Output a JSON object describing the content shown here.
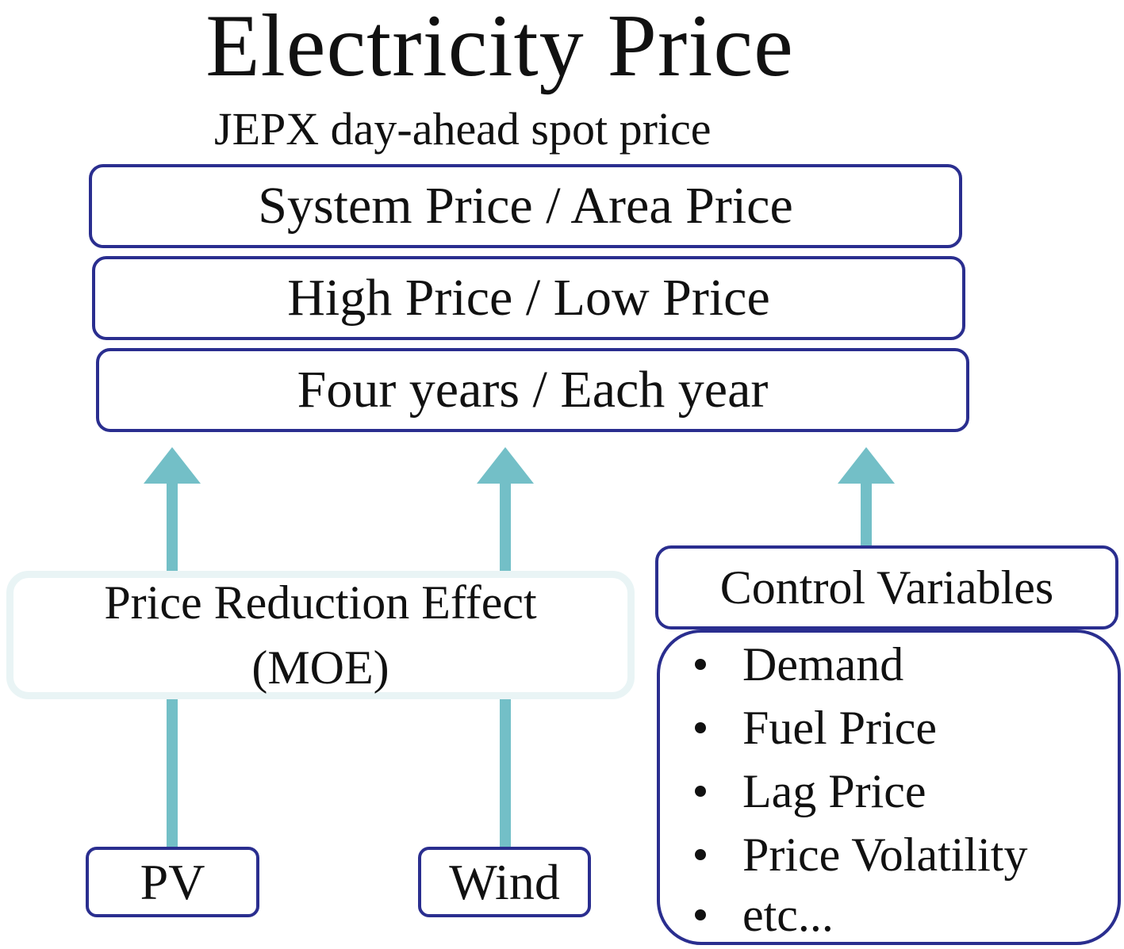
{
  "title": "Electricity Price",
  "subtitle": "JEPX day-ahead spot price",
  "bands": [
    {
      "label": "System Price / Area Price"
    },
    {
      "label": "High Price / Low Price"
    },
    {
      "label": "Four years / Each year"
    }
  ],
  "effect_box": {
    "line1": "Price Reduction Effect",
    "line2": "(MOE)"
  },
  "sources": {
    "pv": "PV",
    "wind": "Wind"
  },
  "control_variables": {
    "header": "Control Variables",
    "items": [
      "Demand",
      "Fuel Price",
      "Lag Price",
      "Price Volatility",
      "etc..."
    ]
  },
  "colors": {
    "box_border": "#2a2e8f",
    "arrow": "#73bfc7",
    "effect_border": "#e9f4f5",
    "text": "#111111"
  }
}
